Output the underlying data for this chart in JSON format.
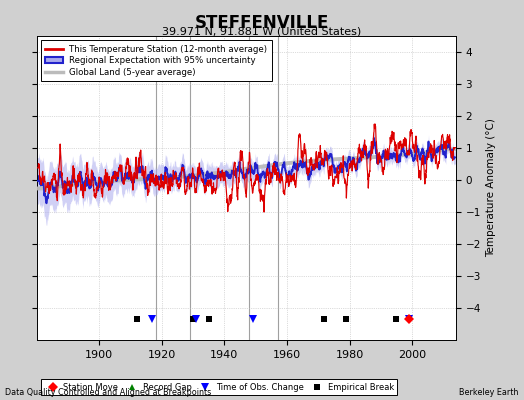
{
  "title": "STEFFENVILLE",
  "subtitle": "39.971 N, 91.881 W (United States)",
  "ylabel": "Temperature Anomaly (°C)",
  "footer_left": "Data Quality Controlled and Aligned at Breakpoints",
  "footer_right": "Berkeley Earth",
  "xlim": [
    1880,
    2014
  ],
  "ylim": [
    -5,
    4.5
  ],
  "yticks": [
    -4,
    -3,
    -2,
    -1,
    0,
    1,
    2,
    3,
    4
  ],
  "xticks": [
    1900,
    1920,
    1940,
    1960,
    1980,
    2000
  ],
  "bg_color": "#d0d0d0",
  "plot_bg_color": "#ffffff",
  "grid_color": "#bbbbbb",
  "station_line_color": "#dd0000",
  "regional_line_color": "#2222cc",
  "regional_fill_color": "#aaaaee",
  "global_land_color": "#bbbbbb",
  "vertical_line_color": "#888888",
  "marker_y": -4.35,
  "empirical_break_years": [
    1912,
    1930,
    1935,
    1972,
    1979,
    1995
  ],
  "time_obs_change_years": [
    1917,
    1931,
    1949,
    1999
  ],
  "record_gap_years": [],
  "station_move_years": [
    1999
  ],
  "vertical_lines": [
    1918,
    1929,
    1948,
    1957
  ],
  "seed": 12345,
  "year_start": 1880,
  "year_end": 2013,
  "noise_scale": 1.1,
  "regional_noise_scale": 0.55
}
